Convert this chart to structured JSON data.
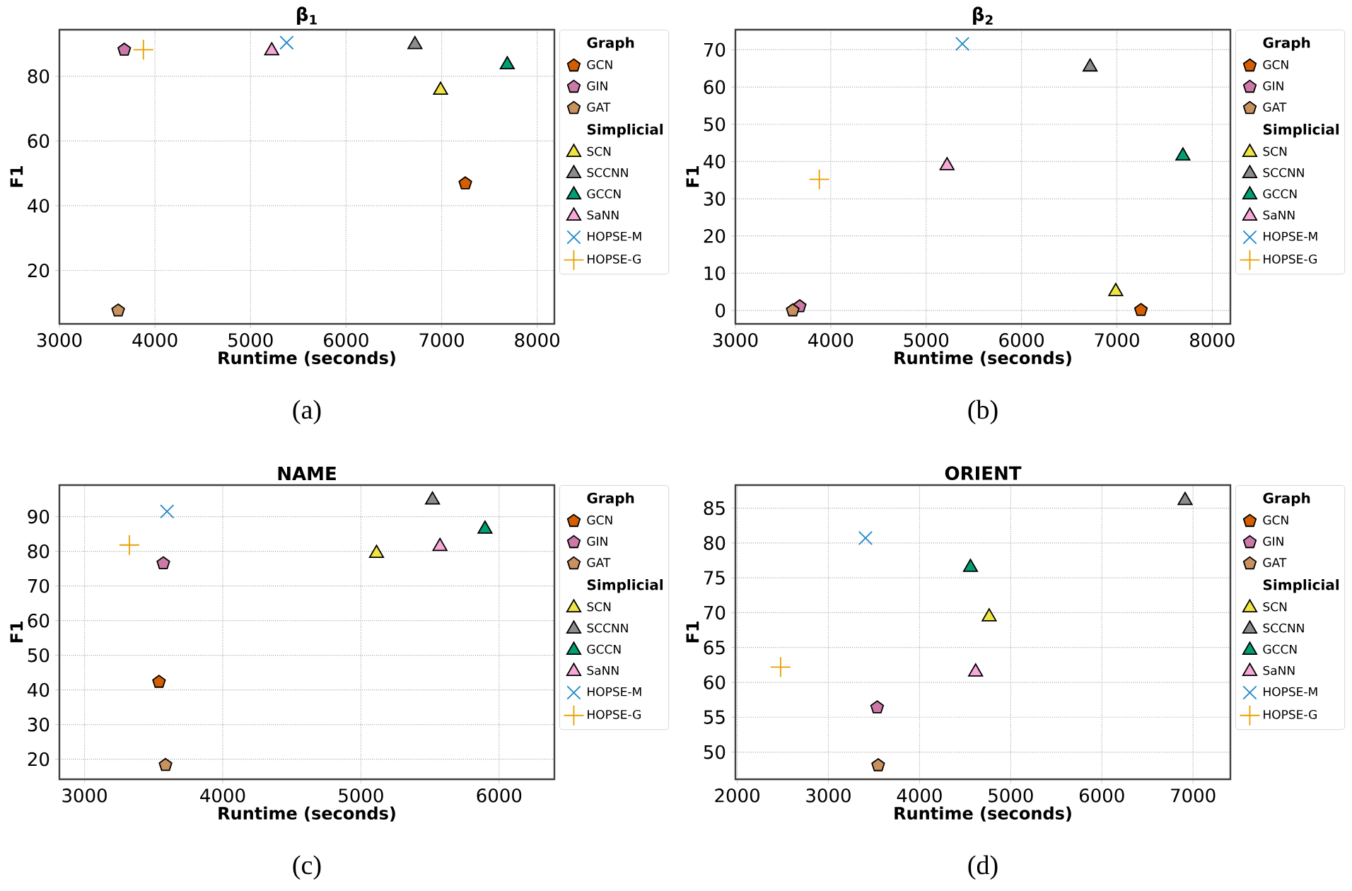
{
  "chart_data": [
    {
      "type": "scatter",
      "title": "β$_{1}$",
      "xlabel": "Runtime (seconds)",
      "ylabel": "F1",
      "annotations": [
        "(a)"
      ],
      "legend_title": [
        "Graph",
        "Simplicial"
      ],
      "legend": "right",
      "grid": true,
      "xlim": [
        3000,
        8180
      ],
      "ylim": [
        3.5,
        94.4
      ],
      "xticks": [
        3000,
        4000,
        5000,
        6000,
        7000,
        8000
      ],
      "yticks": [
        20,
        40,
        60,
        80
      ],
      "series": [
        {
          "name": "GCN",
          "color": "#d55e00",
          "x": [
            7248
          ],
          "values": [
            46.9
          ]
        },
        {
          "name": "GIN",
          "color": "#cc79a7",
          "x": [
            3679
          ],
          "values": [
            88.2
          ]
        },
        {
          "name": "GAT",
          "color": "#c8915f",
          "x": [
            3615
          ],
          "values": [
            7.6
          ]
        },
        {
          "name": "SCN",
          "color": "#f0e442",
          "marker": "triangle",
          "x": [
            6989
          ],
          "values": [
            75.7
          ]
        },
        {
          "name": "SCCNN",
          "color": "#8c8c8c",
          "marker": "triangle",
          "x": [
            6721
          ],
          "values": [
            89.8
          ]
        },
        {
          "name": "GCCN",
          "color": "#009e73",
          "marker": "triangle",
          "x": [
            7687
          ],
          "values": [
            83.6
          ]
        },
        {
          "name": "SaNN",
          "color": "#f7a8d8",
          "marker": "triangle",
          "x": [
            5222
          ],
          "values": [
            87.9
          ]
        },
        {
          "name": "HOPSE-M",
          "color": "#1f88c8",
          "marker": "cross",
          "x": [
            5378
          ],
          "values": [
            90.4
          ]
        },
        {
          "name": "HOPSE-G",
          "color": "#e69f00",
          "marker": "plus",
          "x": [
            3879
          ],
          "values": [
            88.2
          ]
        }
      ]
    },
    {
      "type": "scatter",
      "title": "β$_{2}$",
      "xlabel": "Runtime (seconds)",
      "ylabel": "F1",
      "annotations": [
        "(b)"
      ],
      "legend_title": [
        "Graph",
        "Simplicial"
      ],
      "legend": "right",
      "grid": true,
      "xlim": [
        3000,
        8190
      ],
      "ylim": [
        -3.6,
        75.4
      ],
      "xticks": [
        3000,
        4000,
        5000,
        6000,
        7000,
        8000
      ],
      "yticks": [
        0,
        10,
        20,
        30,
        40,
        50,
        60,
        70
      ],
      "series": [
        {
          "name": "GCN",
          "color": "#d55e00",
          "x": [
            7252
          ],
          "values": [
            0.1
          ]
        },
        {
          "name": "GIN",
          "color": "#cc79a7",
          "x": [
            3674
          ],
          "values": [
            1.1
          ]
        },
        {
          "name": "GAT",
          "color": "#c8915f",
          "x": [
            3601
          ],
          "values": [
            0
          ]
        },
        {
          "name": "SCN",
          "color": "#f0e442",
          "marker": "triangle",
          "x": [
            6988
          ],
          "values": [
            5.1
          ]
        },
        {
          "name": "SCCNN",
          "color": "#8c8c8c",
          "marker": "triangle",
          "x": [
            6719
          ],
          "values": [
            65.4
          ]
        },
        {
          "name": "GCCN",
          "color": "#009e73",
          "marker": "triangle",
          "x": [
            7692
          ],
          "values": [
            41.5
          ]
        },
        {
          "name": "SaNN",
          "color": "#f7a8d8",
          "marker": "triangle",
          "x": [
            5219
          ],
          "values": [
            38.9
          ]
        },
        {
          "name": "HOPSE-M",
          "color": "#1f88c8",
          "marker": "cross",
          "x": [
            5380
          ],
          "values": [
            71.6
          ]
        },
        {
          "name": "HOPSE-G",
          "color": "#e69f00",
          "marker": "plus",
          "x": [
            3880
          ],
          "values": [
            35.2
          ]
        }
      ]
    },
    {
      "type": "scatter",
      "title": "NAME",
      "xlabel": "Runtime (seconds)",
      "ylabel": "F1",
      "annotations": [
        "(c)"
      ],
      "legend_title": [
        "Graph",
        "Simplicial"
      ],
      "legend": "right",
      "grid": true,
      "xlim": [
        2818,
        6400
      ],
      "ylim": [
        14.2,
        99.1
      ],
      "xticks": [
        3000,
        4000,
        5000,
        6000
      ],
      "yticks": [
        20,
        30,
        40,
        50,
        60,
        70,
        80,
        90
      ],
      "series": [
        {
          "name": "GCN",
          "color": "#d55e00",
          "x": [
            3539
          ],
          "values": [
            42.3
          ]
        },
        {
          "name": "GIN",
          "color": "#cc79a7",
          "x": [
            3570
          ],
          "values": [
            76.5
          ]
        },
        {
          "name": "GAT",
          "color": "#c8915f",
          "x": [
            3586
          ],
          "values": [
            18.3
          ]
        },
        {
          "name": "SCN",
          "color": "#f0e442",
          "marker": "triangle",
          "x": [
            5113
          ],
          "values": [
            79.4
          ]
        },
        {
          "name": "SCCNN",
          "color": "#8c8c8c",
          "marker": "triangle",
          "x": [
            5518
          ],
          "values": [
            94.8
          ]
        },
        {
          "name": "GCCN",
          "color": "#009e73",
          "marker": "triangle",
          "x": [
            5898
          ],
          "values": [
            86.4
          ]
        },
        {
          "name": "SaNN",
          "color": "#f7a8d8",
          "marker": "triangle",
          "x": [
            5572
          ],
          "values": [
            81.4
          ]
        },
        {
          "name": "HOPSE-M",
          "color": "#1f88c8",
          "marker": "cross",
          "x": [
            3597
          ],
          "values": [
            91.5
          ]
        },
        {
          "name": "HOPSE-G",
          "color": "#e69f00",
          "marker": "plus",
          "x": [
            3324
          ],
          "values": [
            81.8
          ]
        }
      ]
    },
    {
      "type": "scatter",
      "title": "ORIENT",
      "xlabel": "Runtime (seconds)",
      "ylabel": "F1",
      "annotations": [
        "(d)"
      ],
      "legend_title": [
        "Graph",
        "Simplicial"
      ],
      "legend": "right",
      "grid": true,
      "xlim": [
        1980,
        7410
      ],
      "ylim": [
        46.1,
        88.3
      ],
      "xticks": [
        2000,
        3000,
        4000,
        5000,
        6000,
        7000
      ],
      "yticks": [
        50,
        55,
        60,
        65,
        70,
        75,
        80,
        85
      ],
      "series": [
        {
          "name": "GCN",
          "color": "#d55e00",
          "x": [
            null
          ],
          "values": [
            null
          ]
        },
        {
          "name": "GIN",
          "color": "#cc79a7",
          "x": [
            3535
          ],
          "values": [
            56.4
          ]
        },
        {
          "name": "GAT",
          "color": "#c8915f",
          "x": [
            3546
          ],
          "values": [
            48.1
          ]
        },
        {
          "name": "SCN",
          "color": "#f0e442",
          "marker": "triangle",
          "x": [
            4764
          ],
          "values": [
            69.4
          ]
        },
        {
          "name": "SCCNN",
          "color": "#8c8c8c",
          "marker": "triangle",
          "x": [
            6913
          ],
          "values": [
            86.1
          ]
        },
        {
          "name": "GCCN",
          "color": "#009e73",
          "marker": "triangle",
          "x": [
            4559
          ],
          "values": [
            76.5
          ]
        },
        {
          "name": "SaNN",
          "color": "#f7a8d8",
          "marker": "triangle",
          "x": [
            4615
          ],
          "values": [
            61.5
          ]
        },
        {
          "name": "HOPSE-M",
          "color": "#1f88c8",
          "marker": "cross",
          "x": [
            3407
          ],
          "values": [
            80.7
          ]
        },
        {
          "name": "HOPSE-G",
          "color": "#e69f00",
          "marker": "plus",
          "x": [
            2476
          ],
          "values": [
            62.2
          ]
        }
      ]
    }
  ]
}
